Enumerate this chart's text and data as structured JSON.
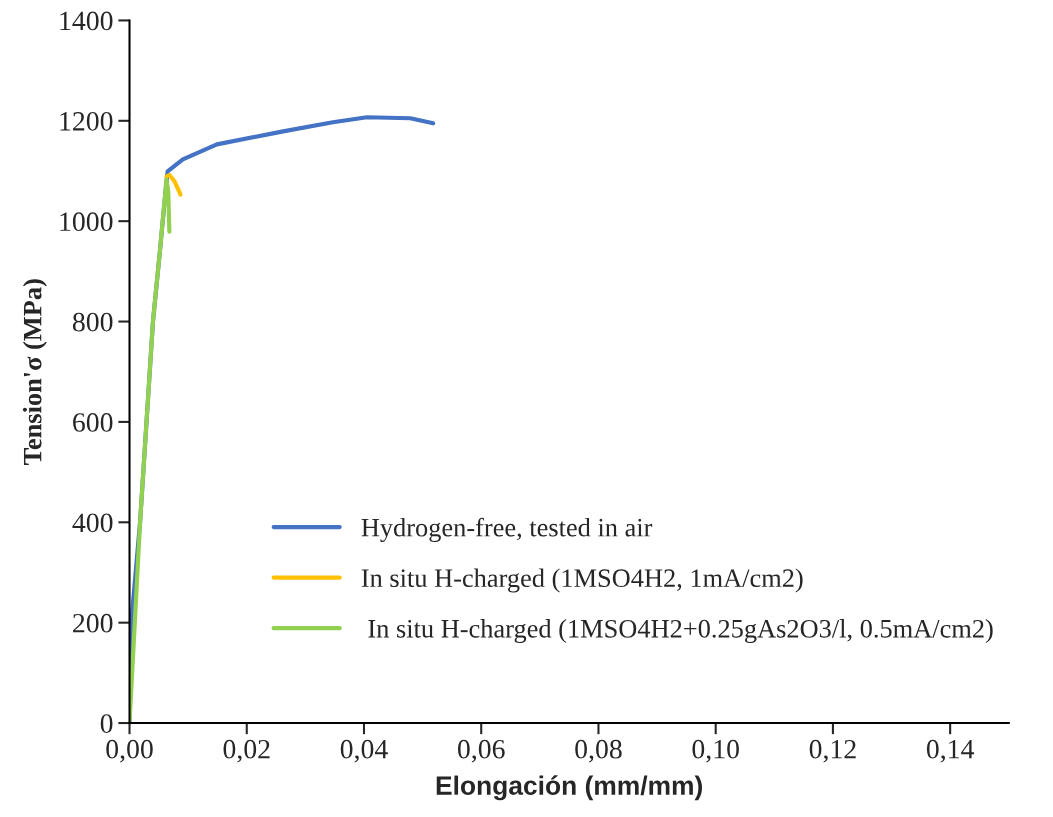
{
  "chart_data": {
    "type": "line",
    "xlabel": "Elongación (mm/mm)",
    "ylabel": "Tension'σ (MPa)",
    "xlim": [
      0,
      0.15
    ],
    "ylim": [
      0,
      1400
    ],
    "xticks": [
      {
        "value": 0,
        "label": "0,00"
      },
      {
        "value": 0.02,
        "label": "0,02"
      },
      {
        "value": 0.04,
        "label": "0,04"
      },
      {
        "value": 0.06,
        "label": "0,06"
      },
      {
        "value": 0.08,
        "label": "0,08"
      },
      {
        "value": 0.1,
        "label": "0,10"
      },
      {
        "value": 0.12,
        "label": "0,12"
      },
      {
        "value": 0.14,
        "label": "0,14"
      }
    ],
    "yticks": [
      0,
      200,
      400,
      600,
      800,
      1000,
      1200,
      1400
    ],
    "grid": false,
    "legend": "lower right",
    "marker": "none",
    "line_style": "solid",
    "series": [
      {
        "name": "Hydrogen-free, tested in air",
        "color": "#4472c4",
        "x": [
          0,
          0.0003,
          0.0018,
          0.0029,
          0.004,
          0.0052,
          0.0063,
          0.0065,
          0.0091,
          0.0149,
          0.0262,
          0.0347,
          0.0405,
          0.0479,
          0.0518
        ],
        "values": [
          0,
          200,
          400,
          600,
          800,
          942,
          1078,
          1099,
          1123,
          1153,
          1179,
          1197,
          1207,
          1205,
          1195
        ]
      },
      {
        "name": "In situ H-charged (1MSO4H2, 1mA/cm2)",
        "color": "#ffc000",
        "x": [
          0.0063,
          0.0068,
          0.0077,
          0.0087
        ],
        "values": [
          1089,
          1092,
          1079,
          1053
        ]
      },
      {
        "name": " In situ H-charged (1MSO4H2+0.25gAs2O3/l, 0.5mA/cm2)",
        "color": "#92d050",
        "x": [
          0,
          0.0009,
          0.0018,
          0.0029,
          0.004,
          0.0052,
          0.0063,
          0.0066,
          0.0068
        ],
        "values": [
          0,
          200,
          400,
          600,
          800,
          942,
          1083,
          1060,
          979
        ]
      }
    ]
  }
}
